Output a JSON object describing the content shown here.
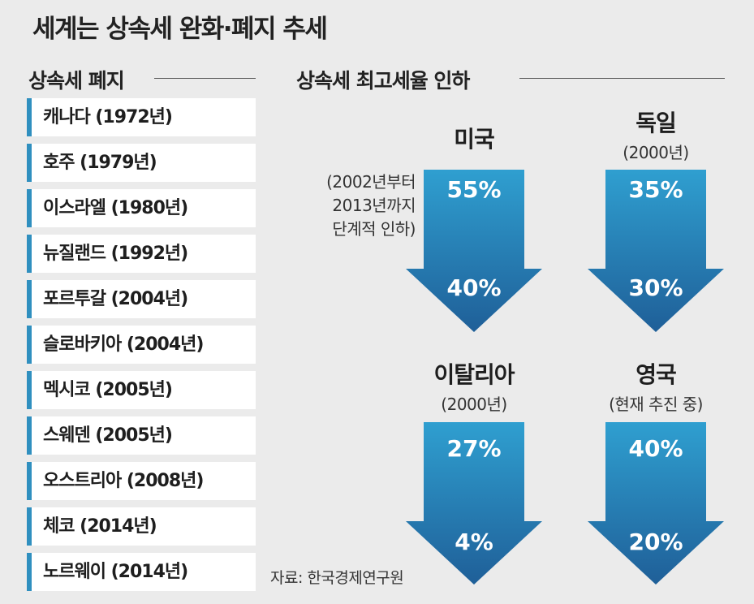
{
  "title": "세계는 상속세 완화·폐지 추세",
  "left_section": {
    "heading": "상속세 폐지",
    "items": [
      "캐나다 (1972년)",
      "호주 (1979년)",
      "이스라엘 (1980년)",
      "뉴질랜드 (1992년)",
      "포르투갈 (2004년)",
      "슬로바키아 (2004년)",
      "멕시코 (2005년)",
      "스웨덴 (2005년)",
      "오스트리아 (2008년)",
      "체코 (2014년)",
      "노르웨이 (2014년)"
    ]
  },
  "right_section": {
    "heading": "상속세 최고세율 인하",
    "us_note": [
      "(2002년부터",
      "2013년까지",
      "단계적 인하)"
    ]
  },
  "source": "자료: 한국경제연구원",
  "colors": {
    "accent": "#2f8fbf",
    "arrow_top": "#2f9fd0",
    "arrow_bottom": "#1f5f98"
  },
  "chart_data": {
    "type": "table",
    "title": "상속세 최고세율 인하",
    "unit": "%",
    "countries": [
      {
        "name": "미국",
        "note": "",
        "from": 55,
        "to": 40,
        "from_label": "55%",
        "to_label": "40%"
      },
      {
        "name": "독일",
        "note": "(2000년)",
        "from": 35,
        "to": 30,
        "from_label": "35%",
        "to_label": "30%"
      },
      {
        "name": "이탈리아",
        "note": "(2000년)",
        "from": 27,
        "to": 4,
        "from_label": "27%",
        "to_label": "4%"
      },
      {
        "name": "영국",
        "note": "(현재 추진 중)",
        "from": 40,
        "to": 20,
        "from_label": "40%",
        "to_label": "20%"
      }
    ]
  }
}
